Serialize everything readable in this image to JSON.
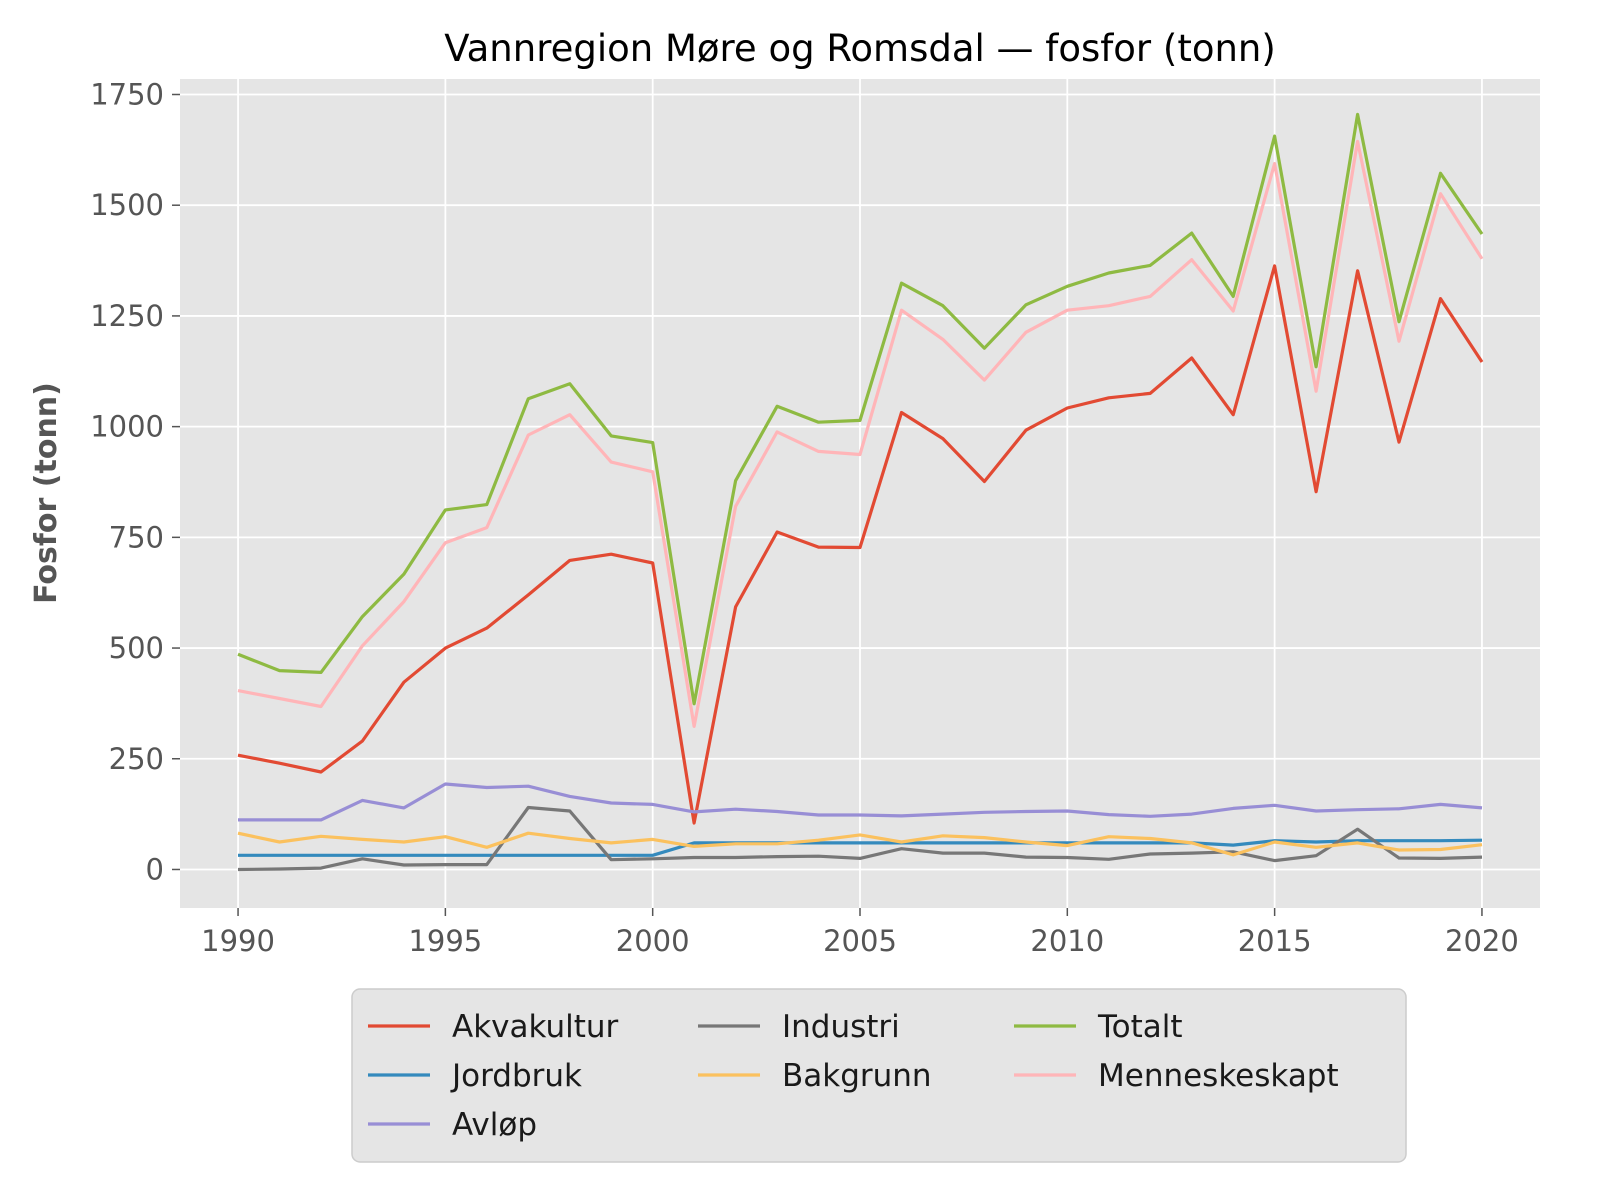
{
  "chart_data": {
    "type": "line",
    "title": "Vannregion Møre og Romsdal — fosfor (tonn)",
    "xlabel": "",
    "ylabel": "Fosfor (tonn)",
    "xlim": [
      1988.6,
      2021.4
    ],
    "ylim": [
      -87,
      1785
    ],
    "xticks": [
      "1990",
      "1995",
      "2000",
      "2005",
      "2010",
      "2015",
      "2020"
    ],
    "yticks": [
      "0",
      "250",
      "500",
      "750",
      "1000",
      "1250",
      "1500",
      "1750"
    ],
    "grid": true,
    "legend_position": "bottom-center",
    "x": [
      1990,
      1991,
      1992,
      1993,
      1994,
      1995,
      1996,
      1997,
      1998,
      1999,
      2000,
      2001,
      2002,
      2003,
      2004,
      2005,
      2006,
      2007,
      2008,
      2009,
      2010,
      2011,
      2012,
      2013,
      2014,
      2015,
      2016,
      2017,
      2018,
      2019,
      2020
    ],
    "series": [
      {
        "name": "Akvakultur",
        "color": "#E24A33",
        "values": [
          258,
          240,
          220,
          290,
          423,
          500,
          545,
          620,
          698,
          712,
          692,
          105,
          593,
          762,
          728,
          727,
          1032,
          973,
          876,
          992,
          1042,
          1065,
          1075,
          1155,
          1027,
          1363,
          853,
          1352,
          965,
          1289,
          1146
        ]
      },
      {
        "name": "Jordbruk",
        "color": "#348ABD",
        "values": [
          32,
          32,
          32,
          32,
          32,
          32,
          32,
          32,
          32,
          32,
          32,
          60,
          60,
          60,
          60,
          60,
          60,
          60,
          60,
          60,
          60,
          60,
          60,
          60,
          55,
          65,
          62,
          65,
          65,
          65,
          66
        ]
      },
      {
        "name": "Avløp",
        "color": "#988ED5",
        "values": [
          112,
          112,
          112,
          156,
          139,
          193,
          185,
          188,
          165,
          150,
          147,
          130,
          136,
          131,
          123,
          123,
          121,
          125,
          129,
          131,
          132,
          124,
          120,
          125,
          138,
          145,
          132,
          135,
          137,
          147,
          139
        ]
      },
      {
        "name": "Industri",
        "color": "#777777",
        "values": [
          0,
          1,
          3,
          24,
          10,
          11,
          11,
          140,
          132,
          22,
          24,
          27,
          27,
          29,
          30,
          25,
          47,
          37,
          37,
          28,
          27,
          23,
          35,
          37,
          40,
          20,
          31,
          91,
          26,
          25,
          28
        ]
      },
      {
        "name": "Bakgrunn",
        "color": "#FBC15E",
        "values": [
          82,
          62,
          75,
          68,
          62,
          74,
          50,
          82,
          70,
          60,
          68,
          52,
          58,
          58,
          66,
          78,
          62,
          76,
          72,
          62,
          54,
          74,
          70,
          60,
          33,
          62,
          50,
          60,
          44,
          45,
          56
        ]
      },
      {
        "name": "Totalt",
        "color": "#8EBA42",
        "values": [
          486,
          449,
          445,
          571,
          667,
          812,
          824,
          1063,
          1097,
          979,
          964,
          374,
          878,
          1046,
          1010,
          1014,
          1324,
          1273,
          1177,
          1275,
          1317,
          1347,
          1364,
          1437,
          1294,
          1656,
          1135,
          1705,
          1237,
          1572,
          1435
        ]
      },
      {
        "name": "Menneskeskapt",
        "color": "#FFB5B8",
        "values": [
          404,
          386,
          368,
          505,
          605,
          738,
          772,
          981,
          1027,
          920,
          898,
          323,
          820,
          988,
          944,
          937,
          1263,
          1197,
          1105,
          1213,
          1263,
          1273,
          1294,
          1377,
          1261,
          1594,
          1080,
          1644,
          1193,
          1526,
          1379
        ]
      }
    ]
  }
}
